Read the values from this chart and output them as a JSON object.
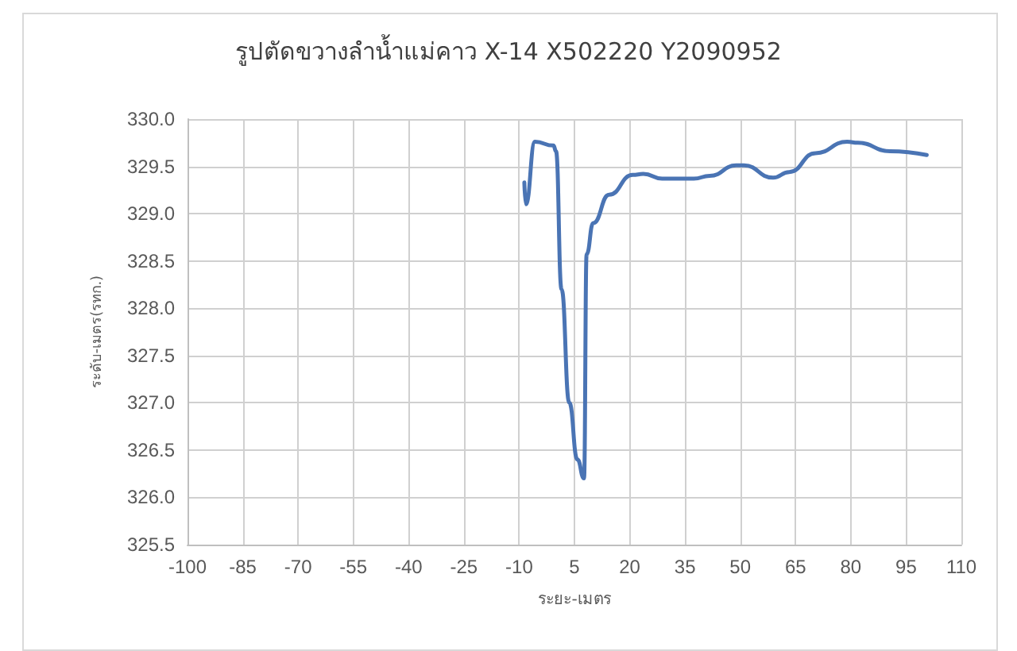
{
  "chart_data": {
    "type": "line",
    "title": "รูปตัดขวางลำน้ำแม่คาว X-14 X502220 Y2090952",
    "xlabel": "ระยะ-เมตร",
    "ylabel": "ระดับ-เมตร(รทก.)",
    "x": [
      -8.6,
      -8.2,
      -5.7,
      -0.7,
      0.0,
      1.5,
      3.6,
      5.8,
      7.6,
      8.3,
      10.1,
      14.4,
      20.8,
      23.7,
      28.8,
      37.4,
      41.7,
      48.9,
      51.0,
      58.9,
      63.3,
      70.4,
      79.0,
      81.9,
      90.6,
      100.6
    ],
    "series": [
      {
        "color": "#4a74b4",
        "values": [
          329.33,
          329.1,
          329.76,
          329.72,
          329.66,
          328.2,
          327.0,
          326.4,
          326.2,
          328.57,
          328.9,
          329.2,
          329.41,
          329.42,
          329.37,
          329.37,
          329.4,
          329.51,
          329.51,
          329.38,
          329.44,
          329.64,
          329.76,
          329.75,
          329.66,
          329.62
        ]
      }
    ],
    "xlim": [
      -100,
      110
    ],
    "xticks": [
      -100,
      -85,
      -70,
      -55,
      -40,
      -25,
      -10,
      5,
      20,
      35,
      50,
      65,
      80,
      95,
      110
    ],
    "ylim": [
      325.5,
      330
    ],
    "yticks": [
      325.5,
      {
        "value": 326,
        "label": "326.0"
      },
      326.5,
      {
        "value": 327,
        "label": "327.0"
      },
      327.5,
      {
        "value": 328,
        "label": "328.0"
      },
      328.5,
      {
        "value": 329,
        "label": "329.0"
      },
      329.5,
      {
        "value": 330,
        "label": "330.0"
      }
    ],
    "grid": true,
    "marker": "none",
    "line_style": "solid"
  }
}
